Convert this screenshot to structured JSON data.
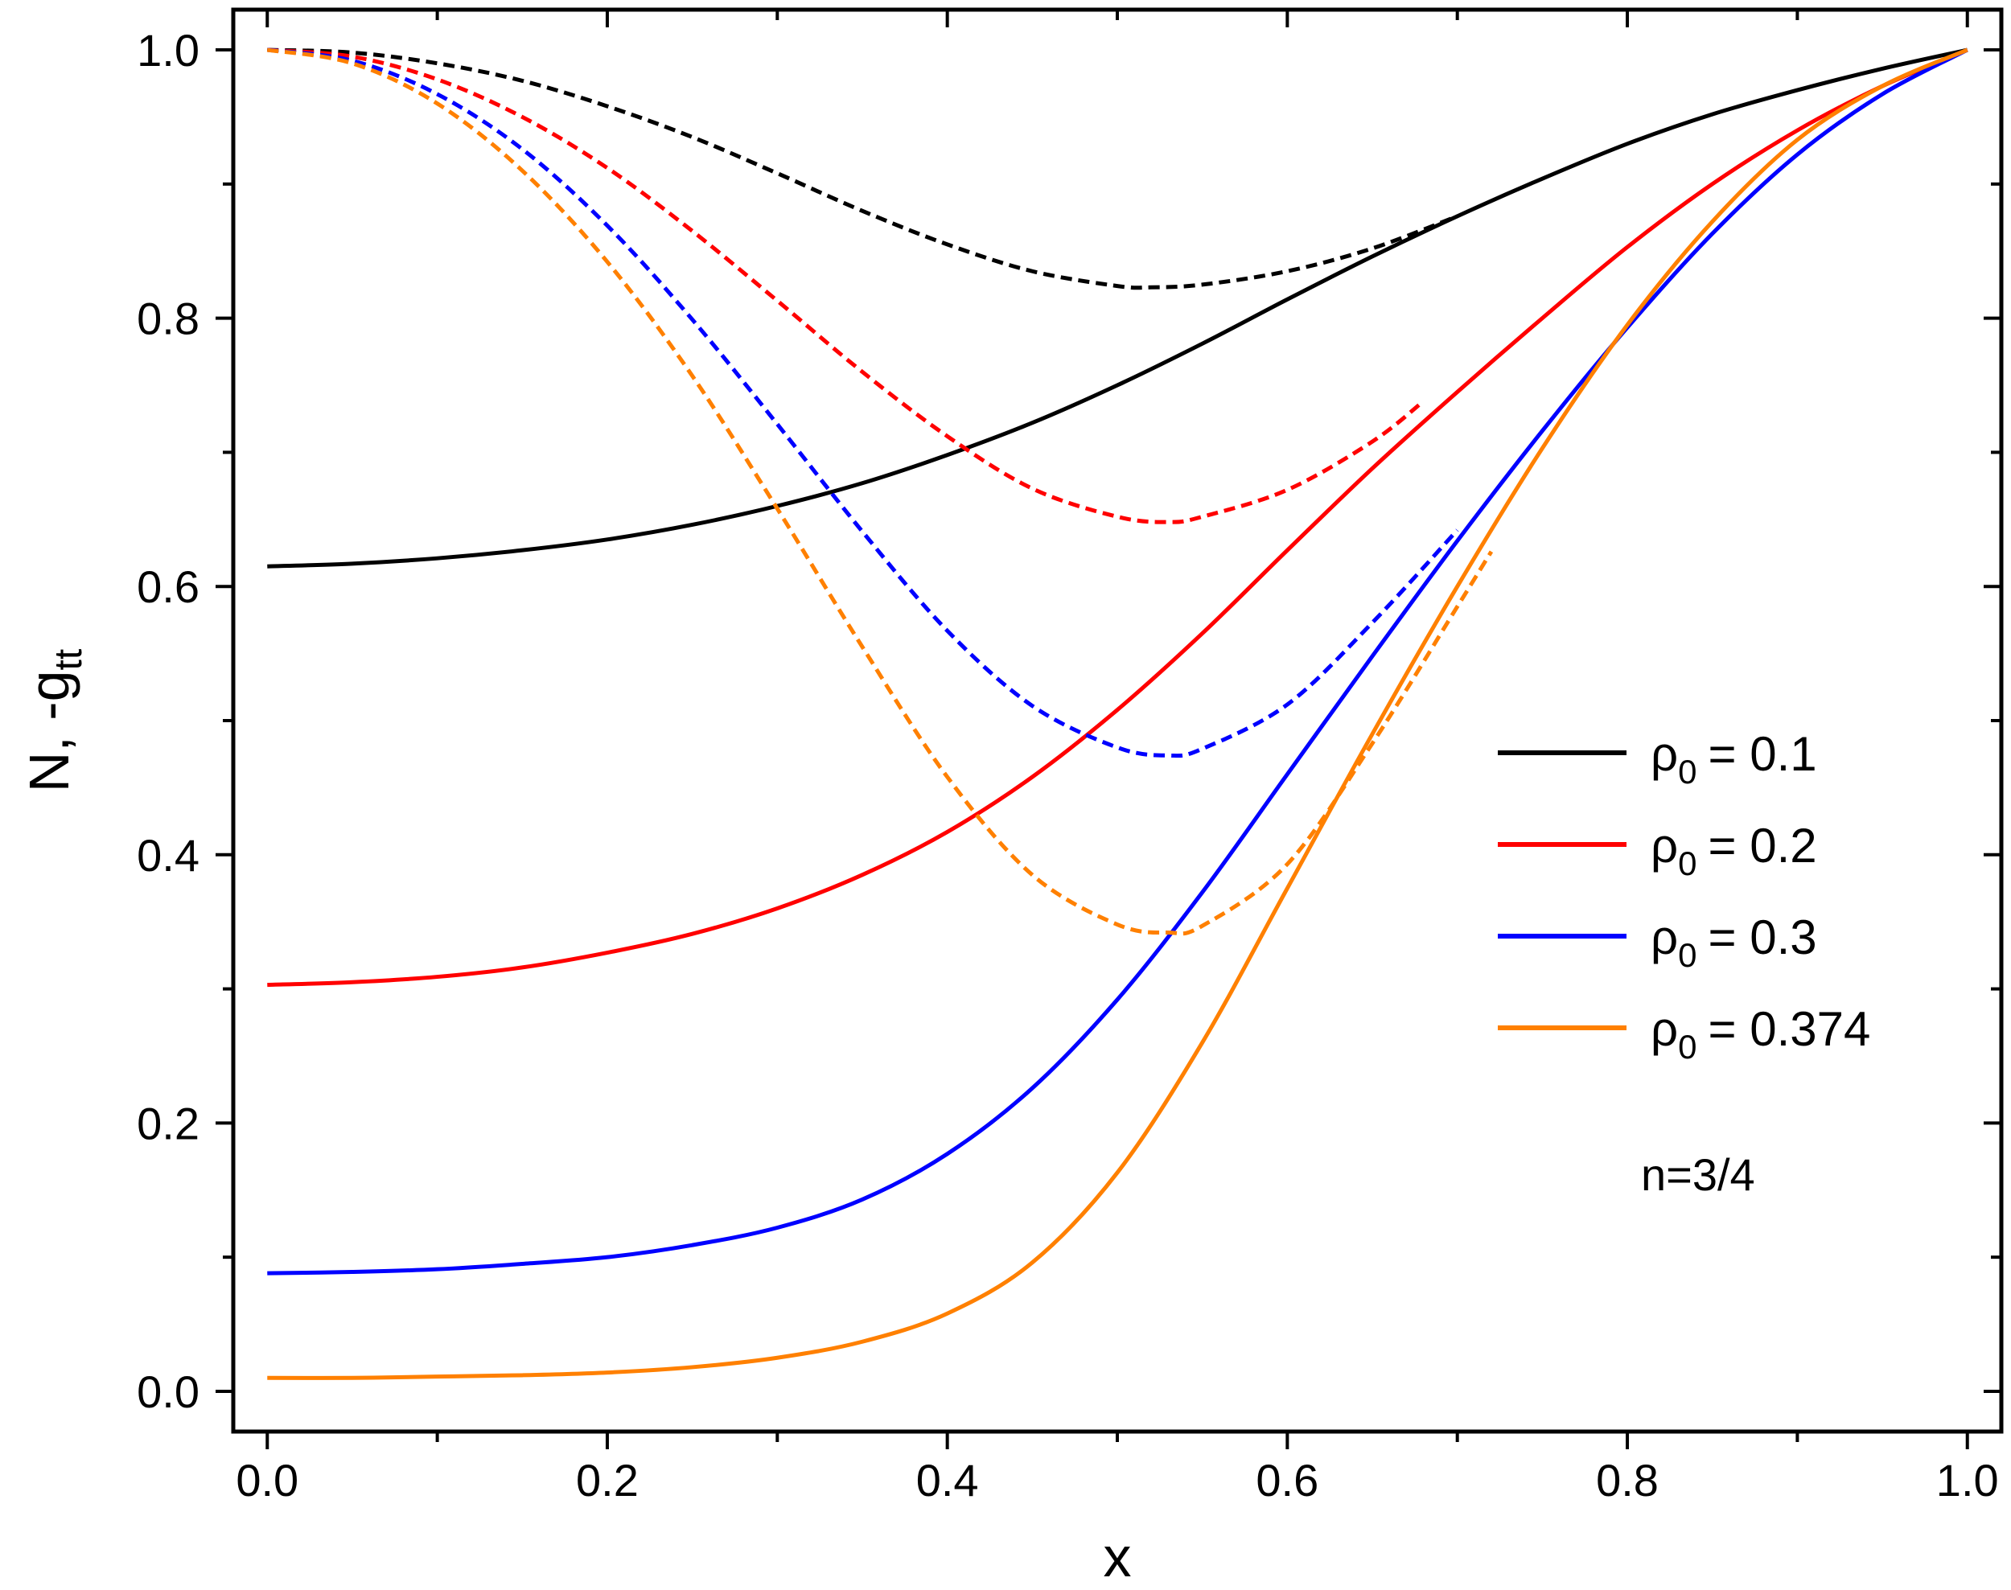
{
  "chart_data": {
    "type": "line",
    "xlabel": "x",
    "ylabel_main": "N, -g",
    "ylabel_sub": "tt",
    "xlim": [
      -0.02,
      1.02
    ],
    "ylim": [
      -0.03,
      1.03
    ],
    "xticks": [
      "0.0",
      "0.2",
      "0.4",
      "0.6",
      "0.8",
      "1.0"
    ],
    "xtick_values": [
      0,
      0.2,
      0.4,
      0.6,
      0.8,
      1.0
    ],
    "yticks": [
      "0.0",
      "0.2",
      "0.4",
      "0.6",
      "0.8",
      "1.0"
    ],
    "ytick_values": [
      0,
      0.2,
      0.4,
      0.6,
      0.8,
      1.0
    ],
    "legend_symbol": "ρ",
    "legend_subscript": "0",
    "annotation": "n=3/4",
    "series": [
      {
        "name": "ρ0 = 0.1",
        "label_value": "= 0.1",
        "color": "#000000",
        "N": {
          "style": "solid",
          "x": [
            0,
            0.05,
            0.1,
            0.15,
            0.2,
            0.25,
            0.3,
            0.35,
            0.4,
            0.45,
            0.5,
            0.55,
            0.6,
            0.65,
            0.7,
            0.75,
            0.8,
            0.85,
            0.9,
            0.95,
            1.0
          ],
          "y": [
            0.615,
            0.617,
            0.621,
            0.627,
            0.635,
            0.646,
            0.66,
            0.677,
            0.698,
            0.722,
            0.75,
            0.781,
            0.814,
            0.846,
            0.876,
            0.904,
            0.93,
            0.952,
            0.97,
            0.986,
            1.0
          ]
        },
        "g_tt": {
          "style": "dashed",
          "x": [
            0,
            0.05,
            0.1,
            0.15,
            0.2,
            0.25,
            0.3,
            0.35,
            0.4,
            0.45,
            0.5,
            0.52,
            0.55,
            0.6,
            0.65,
            0.7
          ],
          "y": [
            1.0,
            0.998,
            0.99,
            0.977,
            0.958,
            0.935,
            0.908,
            0.88,
            0.855,
            0.835,
            0.824,
            0.823,
            0.825,
            0.835,
            0.852,
            0.876
          ]
        }
      },
      {
        "name": "ρ0 = 0.2",
        "label_value": "= 0.2",
        "color": "#ff0000",
        "N": {
          "style": "solid",
          "x": [
            0,
            0.05,
            0.1,
            0.15,
            0.2,
            0.25,
            0.3,
            0.35,
            0.4,
            0.45,
            0.5,
            0.55,
            0.6,
            0.65,
            0.7,
            0.75,
            0.8,
            0.85,
            0.9,
            0.95,
            1.0
          ],
          "y": [
            0.303,
            0.305,
            0.309,
            0.316,
            0.327,
            0.341,
            0.36,
            0.385,
            0.417,
            0.458,
            0.508,
            0.565,
            0.627,
            0.688,
            0.745,
            0.8,
            0.853,
            0.9,
            0.94,
            0.973,
            1.0
          ]
        },
        "g_tt": {
          "style": "dashed",
          "x": [
            0,
            0.05,
            0.1,
            0.15,
            0.2,
            0.25,
            0.3,
            0.35,
            0.4,
            0.45,
            0.5,
            0.53,
            0.55,
            0.6,
            0.65,
            0.68
          ],
          "y": [
            1.0,
            0.995,
            0.978,
            0.95,
            0.912,
            0.865,
            0.813,
            0.76,
            0.712,
            0.673,
            0.652,
            0.648,
            0.652,
            0.672,
            0.708,
            0.738
          ]
        }
      },
      {
        "name": "ρ0 = 0.3",
        "label_value": "= 0.3",
        "color": "#0000ff",
        "N": {
          "style": "solid",
          "x": [
            0,
            0.05,
            0.1,
            0.15,
            0.2,
            0.25,
            0.3,
            0.35,
            0.4,
            0.45,
            0.5,
            0.55,
            0.6,
            0.65,
            0.7,
            0.75,
            0.8,
            0.85,
            0.9,
            0.95,
            1.0
          ],
          "y": [
            0.088,
            0.089,
            0.091,
            0.095,
            0.1,
            0.109,
            0.122,
            0.143,
            0.177,
            0.226,
            0.292,
            0.372,
            0.46,
            0.548,
            0.634,
            0.716,
            0.793,
            0.863,
            0.922,
            0.967,
            1.0
          ]
        },
        "g_tt": {
          "style": "dashed",
          "x": [
            0,
            0.05,
            0.1,
            0.15,
            0.2,
            0.25,
            0.3,
            0.35,
            0.4,
            0.45,
            0.5,
            0.53,
            0.55,
            0.6,
            0.65,
            0.7
          ],
          "y": [
            1.0,
            0.992,
            0.967,
            0.926,
            0.869,
            0.799,
            0.721,
            0.641,
            0.567,
            0.511,
            0.48,
            0.474,
            0.479,
            0.512,
            0.573,
            0.642
          ]
        }
      },
      {
        "name": "ρ0 = 0.374",
        "label_value": "= 0.374",
        "color": "#ff8000",
        "N": {
          "style": "solid",
          "x": [
            0,
            0.05,
            0.1,
            0.15,
            0.2,
            0.25,
            0.3,
            0.35,
            0.4,
            0.45,
            0.5,
            0.55,
            0.6,
            0.65,
            0.7,
            0.75,
            0.8,
            0.85,
            0.9,
            0.95,
            1.0
          ],
          "y": [
            0.01,
            0.01,
            0.011,
            0.012,
            0.014,
            0.018,
            0.025,
            0.037,
            0.058,
            0.096,
            0.163,
            0.26,
            0.375,
            0.49,
            0.6,
            0.703,
            0.795,
            0.872,
            0.933,
            0.973,
            1.0
          ]
        },
        "g_tt": {
          "style": "dashed",
          "x": [
            0,
            0.05,
            0.1,
            0.15,
            0.2,
            0.25,
            0.3,
            0.35,
            0.4,
            0.45,
            0.5,
            0.53,
            0.55,
            0.6,
            0.65,
            0.7,
            0.72
          ],
          "y": [
            1.0,
            0.99,
            0.96,
            0.91,
            0.842,
            0.757,
            0.658,
            0.555,
            0.458,
            0.385,
            0.348,
            0.342,
            0.347,
            0.393,
            0.483,
            0.585,
            0.626
          ]
        }
      }
    ]
  }
}
